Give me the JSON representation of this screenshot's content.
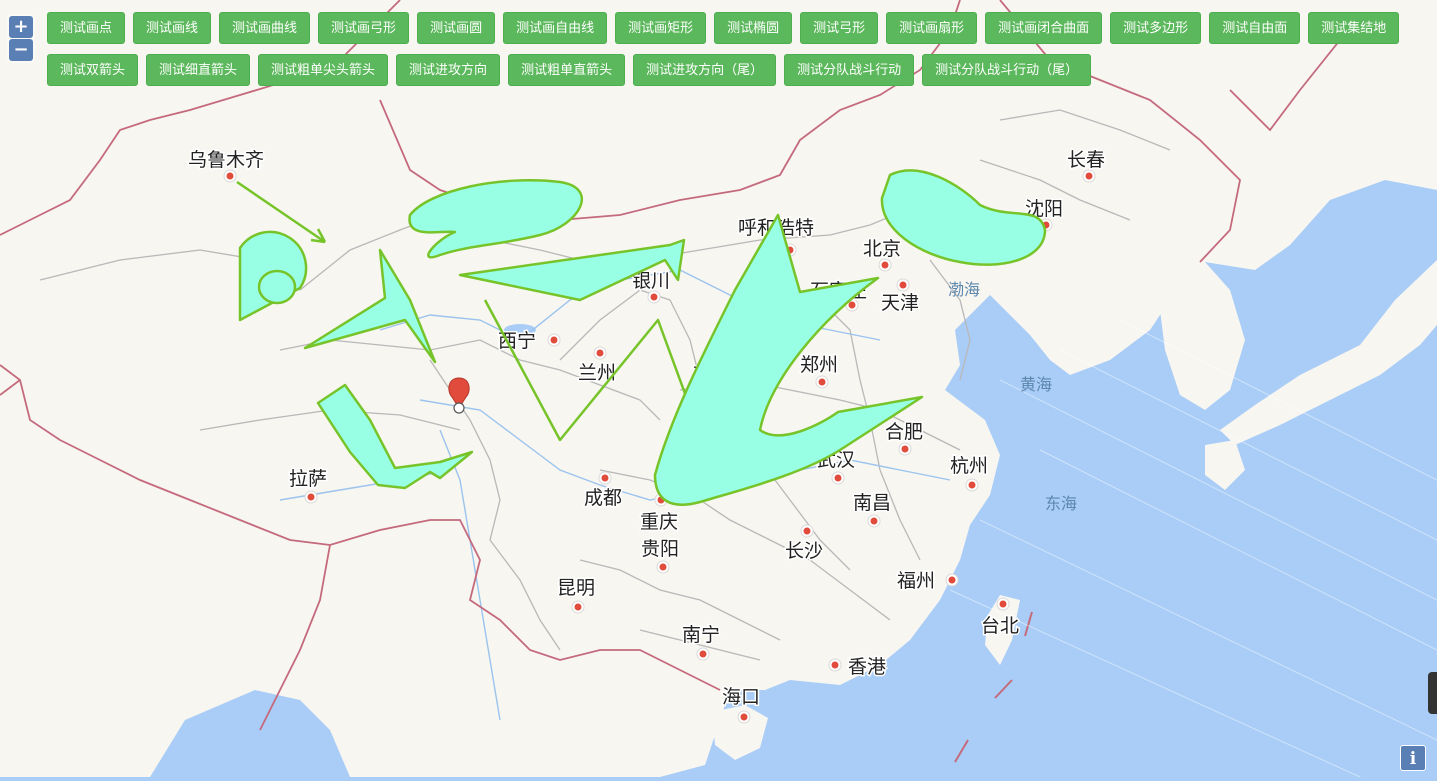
{
  "toolbar": {
    "buttons": [
      "测试画点",
      "测试画线",
      "测试画曲线",
      "测试画弓形",
      "测试画圆",
      "测试画自由线",
      "测试画矩形",
      "测试椭圆",
      "测试弓形",
      "测试画扇形",
      "测试画闭合曲面",
      "测试多边形",
      "测试自由面",
      "测试集结地",
      "测试双箭头",
      "测试细直箭头",
      "测试粗单尖头箭头",
      "测试进攻方向",
      "测试粗单直箭头",
      "测试进攻方向（尾）",
      "测试分队战斗行动",
      "测试分队战斗行动（尾）"
    ]
  },
  "zoom": {
    "in_label": "+",
    "out_label": "−"
  },
  "info_label": "i",
  "cities": [
    "乌鲁木齐",
    "呼和浩特",
    "北京",
    "天津",
    "石家庄",
    "长春",
    "沈阳",
    "银川",
    "西宁",
    "兰州",
    "西安",
    "郑州",
    "合肥",
    "武汉",
    "杭州",
    "南昌",
    "成都",
    "重庆",
    "贵阳",
    "长沙",
    "拉萨",
    "昆明",
    "福州",
    "台北",
    "南宁",
    "香港",
    "海口"
  ],
  "seas": [
    "渤海",
    "黄海",
    "东海"
  ],
  "colors": {
    "land": "#f8f6f1",
    "sea": "#a9cdf7",
    "border_country": "#c46a7c",
    "border_province": "#b8b8b8",
    "shape_fill": "#99ffe4",
    "shape_stroke": "#77c42a",
    "button_green": "#5cb85c",
    "zoom_blue": "#5a7fb5",
    "marker": "#e14b3b"
  }
}
